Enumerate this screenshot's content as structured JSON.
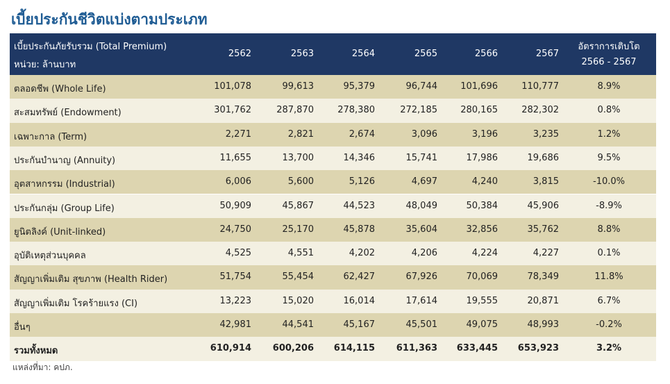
{
  "title": "เบี้ยประกันชีวิตแบ่งตามประเภท",
  "header": {
    "label_lines": [
      "เบี้ยประกันภัยรับรวม (Total Premium)",
      "หน่วย: ล้านบาท"
    ],
    "years": [
      "2562",
      "2563",
      "2564",
      "2565",
      "2566",
      "2567"
    ],
    "growth_lines": [
      "อัตราการเติบโต",
      "2566 - 2567"
    ]
  },
  "rows": [
    {
      "label": "ตลอดชีพ (Whole Life)",
      "values": [
        "101,078",
        "99,613",
        "95,379",
        "96,744",
        "101,696",
        "110,777"
      ],
      "growth": "8.9%"
    },
    {
      "label": "สะสมทรัพย์ (Endowment)",
      "values": [
        "301,762",
        "287,870",
        "278,380",
        "272,185",
        "280,165",
        "282,302"
      ],
      "growth": "0.8%"
    },
    {
      "label": "เฉพาะกาล (Term)",
      "values": [
        "2,271",
        "2,821",
        "2,674",
        "3,096",
        "3,196",
        "3,235"
      ],
      "growth": "1.2%"
    },
    {
      "label": "ประกันบำนาญ (Annuity)",
      "values": [
        "11,655",
        "13,700",
        "14,346",
        "15,741",
        "17,986",
        "19,686"
      ],
      "growth": "9.5%"
    },
    {
      "label": "อุตสาหกรรม (Industrial)",
      "values": [
        "6,006",
        "5,600",
        "5,126",
        "4,697",
        "4,240",
        "3,815"
      ],
      "growth": "-10.0%"
    },
    {
      "label": "ประกันกลุ่ม (Group Life)",
      "values": [
        "50,909",
        "45,867",
        "44,523",
        "48,049",
        "50,384",
        "45,906"
      ],
      "growth": "-8.9%"
    },
    {
      "label": "ยูนิตลิงค์ (Unit-linked)",
      "values": [
        "24,750",
        "25,170",
        "45,878",
        "35,604",
        "32,856",
        "35,762"
      ],
      "growth": "8.8%"
    },
    {
      "label": "อุบัติเหตุส่วนบุคคล",
      "values": [
        "4,525",
        "4,551",
        "4,202",
        "4,206",
        "4,224",
        "4,227"
      ],
      "growth": "0.1%"
    },
    {
      "label": "สัญญาเพิ่มเติม สุขภาพ (Health Rider)",
      "values": [
        "51,754",
        "55,454",
        "62,427",
        "67,926",
        "70,069",
        "78,349"
      ],
      "growth": "11.8%"
    },
    {
      "label": "สัญญาเพิ่มเติม โรคร้ายแรง (CI)",
      "values": [
        "13,223",
        "15,020",
        "16,014",
        "17,614",
        "19,555",
        "20,871"
      ],
      "growth": "6.7%"
    },
    {
      "label": "อื่นๆ",
      "values": [
        "42,981",
        "44,541",
        "45,167",
        "45,501",
        "49,075",
        "48,993"
      ],
      "growth": "-0.2%"
    },
    {
      "label": "รวมทั้งหมด",
      "values": [
        "610,914",
        "600,206",
        "614,115",
        "611,363",
        "633,445",
        "653,923"
      ],
      "growth": "3.2%"
    }
  ],
  "source": "แหล่งที่มา: คปภ."
}
